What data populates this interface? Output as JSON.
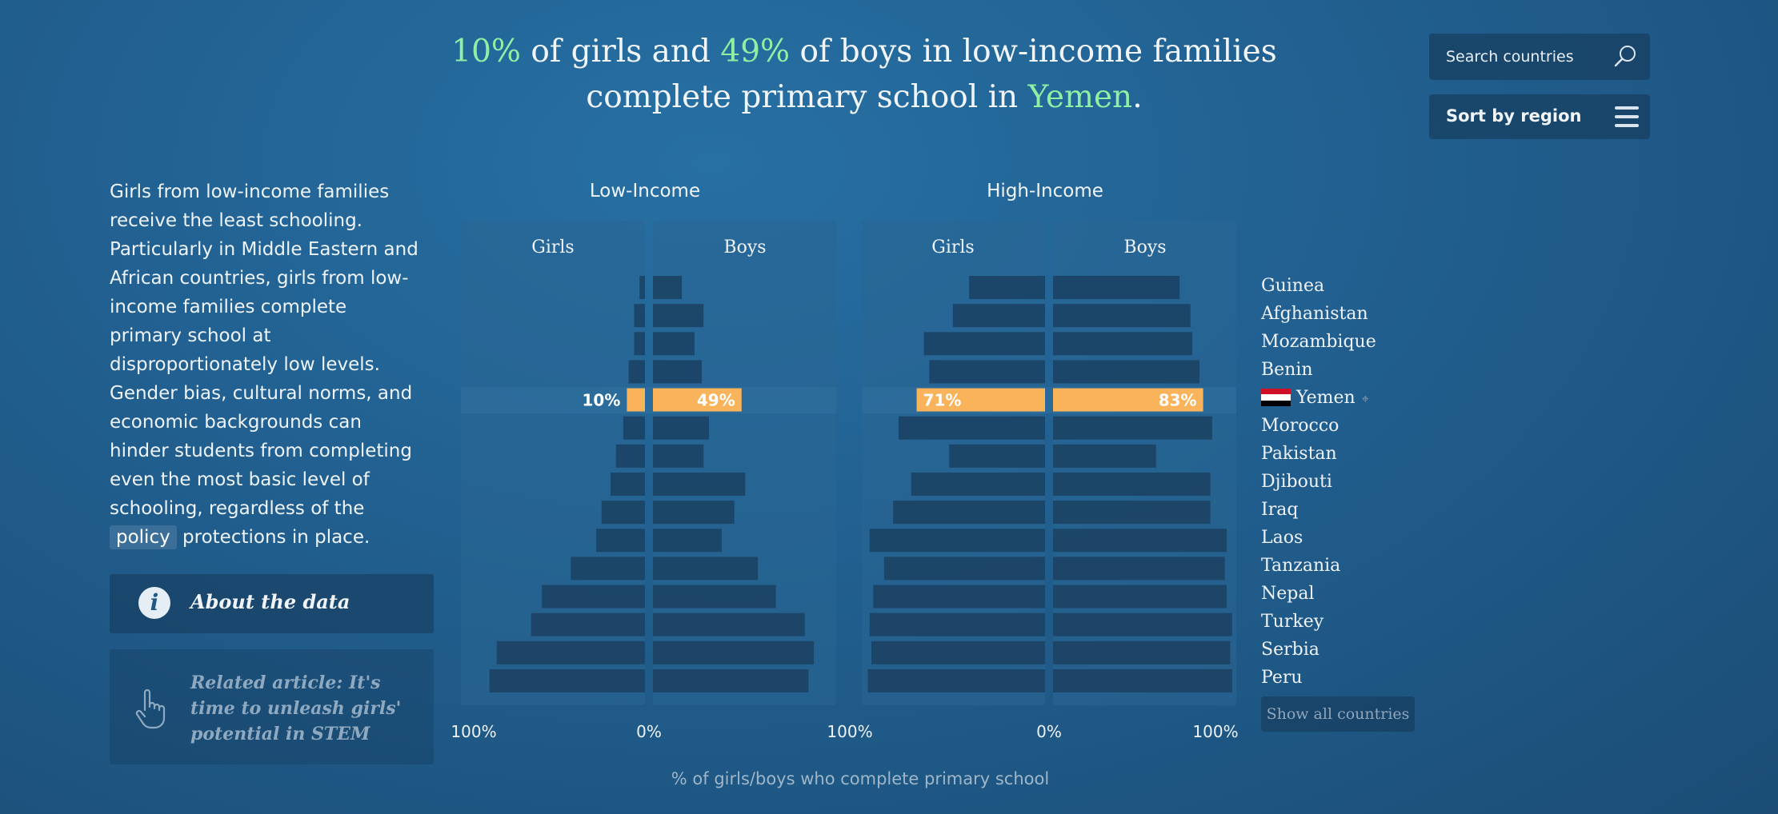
{
  "headline": {
    "girls_value": "10%",
    "text_a": " of girls and ",
    "boys_value": "49%",
    "text_b": " of boys in low-income families complete primary school in ",
    "country": "Yemen",
    "end": "."
  },
  "search": {
    "placeholder": "Search countries"
  },
  "sort": {
    "label": "Sort by region"
  },
  "sidebar": {
    "description": "Girls from low-income families receive the least schooling. Particularly in Middle Eastern and African countries, girls from low-income families complete primary school at disproportionately low levels. Gender bias, cultural norms, and economic backgrounds can hinder students from completing even the most basic level of schooling, regardless of the",
    "policy_link": "policy",
    "description_end": "protections in place.",
    "about_label": "About the data",
    "related_label": "Related article: It's time to unleash girls' potential in STEM"
  },
  "countries": [
    "Guinea",
    "Afghanistan",
    "Mozambique",
    "Benin",
    "Yemen",
    "Morocco",
    "Pakistan",
    "Djibouti",
    "Iraq",
    "Laos",
    "Tanzania",
    "Nepal",
    "Turkey",
    "Serbia",
    "Peru"
  ],
  "selected_country": "Yemen",
  "show_all_label": "Show all countries",
  "colors": {
    "highlight": "#8ff0a4",
    "selected_bar": "#f9b35a",
    "bar": "#1a3f5e",
    "panel": "#2a6693"
  },
  "chart_data": {
    "type": "bar",
    "orientation": "horizontal",
    "layout": "butterfly",
    "categories": [
      "Guinea",
      "Afghanistan",
      "Mozambique",
      "Benin",
      "Yemen",
      "Morocco",
      "Pakistan",
      "Djibouti",
      "Iraq",
      "Laos",
      "Tanzania",
      "Nepal",
      "Turkey",
      "Serbia",
      "Peru"
    ],
    "groups": [
      {
        "name": "Low-Income",
        "series": [
          {
            "name": "Girls",
            "values": [
              3,
              6,
              6,
              9,
              10,
              12,
              16,
              19,
              24,
              27,
              41,
              57,
              63,
              82,
              86
            ]
          },
          {
            "name": "Boys",
            "values": [
              16,
              28,
              23,
              27,
              49,
              31,
              28,
              51,
              45,
              38,
              58,
              68,
              84,
              89,
              86
            ]
          }
        ]
      },
      {
        "name": "High-Income",
        "series": [
          {
            "name": "Girls",
            "values": [
              42,
              51,
              67,
              64,
              71,
              81,
              53,
              74,
              84,
              97,
              89,
              95,
              97,
              96,
              98
            ]
          },
          {
            "name": "Boys",
            "values": [
              70,
              76,
              77,
              81,
              83,
              88,
              57,
              87,
              87,
              96,
              95,
              96,
              99,
              98,
              99
            ]
          }
        ]
      }
    ],
    "selected": "Yemen",
    "axis_ticks": [
      "100%",
      "0%",
      "100%",
      "0%",
      "100%"
    ],
    "xlabel": "% of girls/boys who complete primary school",
    "xlim": [
      0,
      100
    ]
  }
}
